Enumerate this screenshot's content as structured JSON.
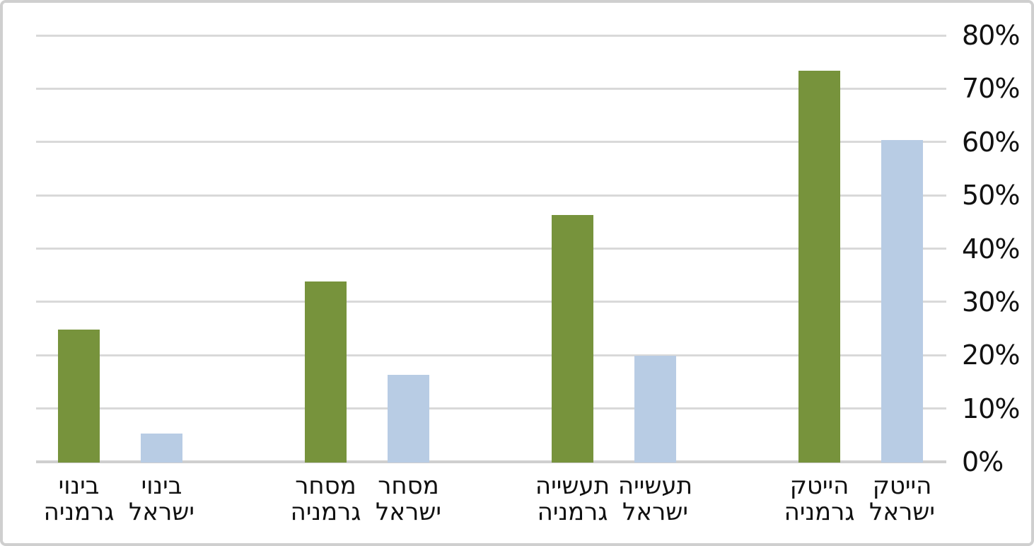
{
  "chart_data": {
    "type": "bar",
    "title": "",
    "orientation": "vertical",
    "rtl": true,
    "legend": "none",
    "gridlines": true,
    "y_axis_side": "right",
    "ylim": [
      0,
      80
    ],
    "yticks": [
      "0%",
      "10%",
      "20%",
      "30%",
      "40%",
      "50%",
      "60%",
      "70%",
      "80%"
    ],
    "value_unit": "percent",
    "sectors": [
      "בינוי",
      "מסחר",
      "תעשייה",
      "הייטק"
    ],
    "series": [
      {
        "name": "גרמניה",
        "color": "#77933C",
        "values": [
          25,
          34,
          46.5,
          73.5
        ]
      },
      {
        "name": "ישראל",
        "color": "#B8CCE4",
        "values": [
          5.5,
          16.5,
          20,
          60.5
        ]
      }
    ],
    "categories": [
      "בינוי גרמניה",
      "בינוי ישראל",
      "מסחר גרמניה",
      "מסחר ישראל",
      "תעשייה גרמניה",
      "תעשייה ישראל",
      "הייטק גרמניה",
      "הייטק ישראל"
    ],
    "bar_values_in_display_order": [
      25,
      5.5,
      34,
      16.5,
      46.5,
      20,
      73.5,
      60.5
    ]
  },
  "colors": {
    "germany_bar": "#77933C",
    "israel_bar": "#B8CCE4",
    "gridline": "#D9D9D9",
    "axis_line": "#CFCFCF",
    "frame_border": "#CFCFCF",
    "text": "#111111",
    "background": "#FFFFFF"
  }
}
